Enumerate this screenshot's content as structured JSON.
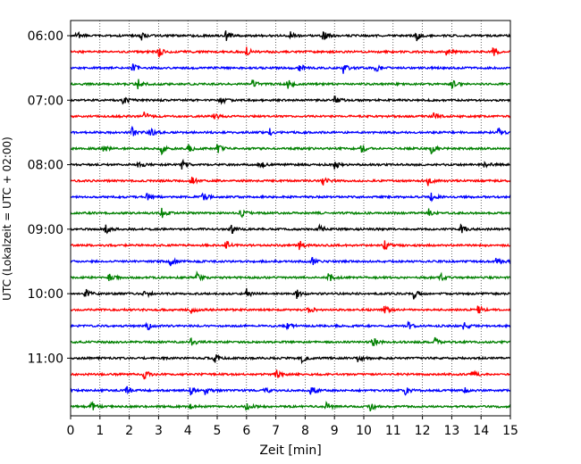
{
  "chart_data": {
    "type": "line",
    "subtype": "helicorder",
    "xlabel": "Zeit  [min]",
    "ylabel": "UTC (Lokalzeit = UTC + 02:00)",
    "xlim": [
      0,
      15
    ],
    "x_ticks": [
      "0",
      "1",
      "2",
      "3",
      "4",
      "5",
      "6",
      "7",
      "8",
      "9",
      "10",
      "11",
      "12",
      "13",
      "14",
      "15"
    ],
    "y_ticks": [
      "06:00",
      "07:00",
      "08:00",
      "09:00",
      "10:00",
      "11:00"
    ],
    "vertical_grid": "dotted",
    "trace_colors": [
      "#000000",
      "#ff0000",
      "#0000ff",
      "#008000"
    ],
    "traces": [
      {
        "start": "06:00",
        "events": [
          0.2,
          2.4,
          5.3,
          7.5,
          8.6,
          11.8
        ]
      },
      {
        "start": "06:15",
        "events": [
          3.0,
          6.0,
          12.8,
          14.4
        ]
      },
      {
        "start": "06:30",
        "events": [
          2.1,
          7.8,
          9.3,
          10.4
        ]
      },
      {
        "start": "06:45",
        "events": [
          2.3,
          6.2,
          7.4,
          13.0
        ]
      },
      {
        "start": "07:00",
        "events": [
          1.8,
          5.1,
          9.0
        ]
      },
      {
        "start": "07:15",
        "events": [
          2.5,
          4.9,
          12.4
        ]
      },
      {
        "start": "07:30",
        "events": [
          2.1,
          2.7,
          6.8,
          14.6
        ]
      },
      {
        "start": "07:45",
        "events": [
          1.1,
          3.1,
          4.0,
          5.0,
          9.9,
          12.3
        ]
      },
      {
        "start": "08:00",
        "events": [
          2.3,
          3.8,
          6.4,
          9.0,
          14.1
        ]
      },
      {
        "start": "08:15",
        "events": [
          4.1,
          8.6,
          12.2
        ]
      },
      {
        "start": "08:30",
        "events": [
          2.6,
          4.5,
          12.3
        ]
      },
      {
        "start": "08:45",
        "events": [
          3.1,
          5.8,
          12.2
        ]
      },
      {
        "start": "09:00",
        "events": [
          1.2,
          5.5,
          8.5,
          13.3
        ]
      },
      {
        "start": "09:15",
        "events": [
          5.3,
          7.8,
          10.7
        ]
      },
      {
        "start": "09:30",
        "events": [
          3.4,
          8.2,
          14.5
        ]
      },
      {
        "start": "09:45",
        "events": [
          1.3,
          4.3,
          8.8,
          12.6
        ]
      },
      {
        "start": "10:00",
        "events": [
          0.5,
          2.5,
          6.0,
          7.7,
          11.7
        ]
      },
      {
        "start": "10:15",
        "events": [
          4.1,
          8.1,
          10.7,
          13.9
        ]
      },
      {
        "start": "10:30",
        "events": [
          2.6,
          7.4,
          11.5,
          13.4
        ]
      },
      {
        "start": "10:45",
        "events": [
          4.1,
          10.3,
          12.4
        ]
      },
      {
        "start": "11:00",
        "events": [
          4.9,
          7.9,
          9.8
        ]
      },
      {
        "start": "11:15",
        "events": [
          2.5,
          7.0,
          13.7
        ]
      },
      {
        "start": "11:30",
        "events": [
          1.9,
          4.1,
          4.6,
          6.6,
          8.2,
          11.4,
          13.4
        ]
      },
      {
        "start": "11:45",
        "events": [
          0.7,
          4.1,
          6.0,
          8.7,
          10.2
        ]
      }
    ]
  }
}
